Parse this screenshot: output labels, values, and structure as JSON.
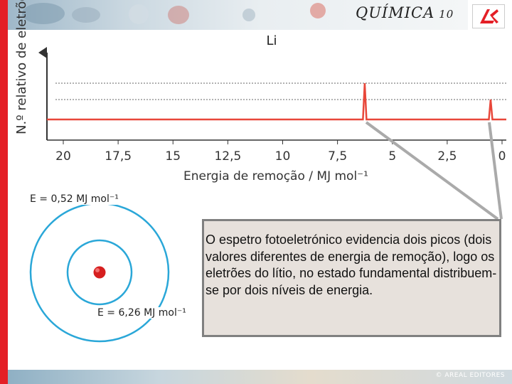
{
  "header": {
    "title": "QUÍMICA",
    "grade": "10"
  },
  "footer": {
    "copyright": "© AREAL EDITORES"
  },
  "chart_data": {
    "type": "line",
    "title": "Li",
    "xlabel": "Energia de remoção / MJ mol⁻¹",
    "ylabel": "N.º relativo de eletrões",
    "x_ticks": [
      "20",
      "17,5",
      "15",
      "12,5",
      "10",
      "7,5",
      "5",
      "2,5",
      "0"
    ],
    "xlim": [
      20,
      0
    ],
    "x_reversed": true,
    "grid": "dashed horizontal reference lines",
    "series": [
      {
        "color": "#e8473a",
        "peaks": [
          {
            "x": 6.26,
            "relative_height": 2
          },
          {
            "x": 0.52,
            "relative_height": 1
          }
        ]
      }
    ]
  },
  "diagram": {
    "outer_energy": "E = 0,52 MJ mol⁻¹",
    "inner_energy": "E = 6,26 MJ mol⁻¹"
  },
  "callout": {
    "text": "O espetro fotoeletrónico evidencia dois picos (dois valores diferentes de energia de remoção), logo os eletrões do lítio, no estado fundamental distribuem-se por dois níveis de energia."
  },
  "colors": {
    "accent": "#e41f26",
    "line": "#e8473a",
    "orbit": "#2aa7d8",
    "nucleus": "#d61f1f"
  }
}
